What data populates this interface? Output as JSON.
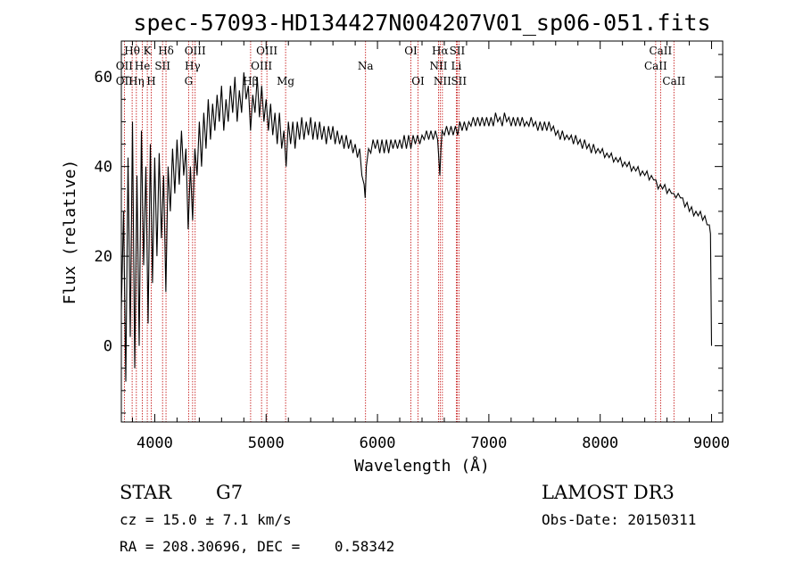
{
  "chart_data": {
    "type": "line",
    "title": "spec-57093-HD134427N004207V01_sp06-051.fits",
    "xlabel": "Wavelength (Å)",
    "ylabel": "Flux (relative)",
    "xlim": [
      3700,
      9100
    ],
    "ylim": [
      -17,
      68
    ],
    "xticks": [
      4000,
      5000,
      6000,
      7000,
      8000,
      9000
    ],
    "yticks": [
      0,
      20,
      40,
      60
    ],
    "series": [
      {
        "name": "spectrum",
        "color": "#000000",
        "points": [
          [
            3700,
            8
          ],
          [
            3720,
            30
          ],
          [
            3740,
            -8
          ],
          [
            3760,
            42
          ],
          [
            3780,
            2
          ],
          [
            3800,
            50
          ],
          [
            3820,
            -5
          ],
          [
            3840,
            38
          ],
          [
            3860,
            0
          ],
          [
            3880,
            48
          ],
          [
            3900,
            18
          ],
          [
            3920,
            40
          ],
          [
            3940,
            5
          ],
          [
            3960,
            45
          ],
          [
            3980,
            14
          ],
          [
            4000,
            42
          ],
          [
            4020,
            20
          ],
          [
            4040,
            43
          ],
          [
            4060,
            24
          ],
          [
            4080,
            38
          ],
          [
            4100,
            12
          ],
          [
            4120,
            40
          ],
          [
            4140,
            30
          ],
          [
            4160,
            44
          ],
          [
            4180,
            34
          ],
          [
            4200,
            46
          ],
          [
            4220,
            36
          ],
          [
            4240,
            48
          ],
          [
            4260,
            38
          ],
          [
            4280,
            44
          ],
          [
            4300,
            26
          ],
          [
            4320,
            40
          ],
          [
            4340,
            28
          ],
          [
            4360,
            44
          ],
          [
            4380,
            38
          ],
          [
            4400,
            50
          ],
          [
            4420,
            40
          ],
          [
            4440,
            52
          ],
          [
            4460,
            44
          ],
          [
            4480,
            55
          ],
          [
            4500,
            46
          ],
          [
            4520,
            54
          ],
          [
            4540,
            48
          ],
          [
            4560,
            56
          ],
          [
            4580,
            50
          ],
          [
            4600,
            58
          ],
          [
            4620,
            48
          ],
          [
            4640,
            55
          ],
          [
            4660,
            50
          ],
          [
            4680,
            58
          ],
          [
            4700,
            52
          ],
          [
            4720,
            60
          ],
          [
            4740,
            50
          ],
          [
            4760,
            57
          ],
          [
            4780,
            52
          ],
          [
            4800,
            61
          ],
          [
            4820,
            55
          ],
          [
            4840,
            58
          ],
          [
            4860,
            48
          ],
          [
            4880,
            56
          ],
          [
            4900,
            52
          ],
          [
            4920,
            60
          ],
          [
            4940,
            51
          ],
          [
            4960,
            58
          ],
          [
            4980,
            50
          ],
          [
            5000,
            55
          ],
          [
            5020,
            48
          ],
          [
            5040,
            54
          ],
          [
            5060,
            47
          ],
          [
            5080,
            52
          ],
          [
            5100,
            45
          ],
          [
            5120,
            52
          ],
          [
            5140,
            44
          ],
          [
            5160,
            48
          ],
          [
            5180,
            40
          ],
          [
            5200,
            50
          ],
          [
            5220,
            45
          ],
          [
            5240,
            50
          ],
          [
            5260,
            44
          ],
          [
            5280,
            50
          ],
          [
            5300,
            46
          ],
          [
            5320,
            51
          ],
          [
            5340,
            46
          ],
          [
            5360,
            50
          ],
          [
            5380,
            47
          ],
          [
            5400,
            51
          ],
          [
            5420,
            46
          ],
          [
            5440,
            50
          ],
          [
            5460,
            46
          ],
          [
            5480,
            50
          ],
          [
            5500,
            46
          ],
          [
            5520,
            49
          ],
          [
            5540,
            45
          ],
          [
            5560,
            49
          ],
          [
            5580,
            46
          ],
          [
            5600,
            49
          ],
          [
            5620,
            45
          ],
          [
            5640,
            48
          ],
          [
            5660,
            45
          ],
          [
            5680,
            47
          ],
          [
            5700,
            44
          ],
          [
            5720,
            47
          ],
          [
            5740,
            44
          ],
          [
            5760,
            46
          ],
          [
            5780,
            43
          ],
          [
            5800,
            45
          ],
          [
            5820,
            42
          ],
          [
            5840,
            44
          ],
          [
            5860,
            38
          ],
          [
            5880,
            36
          ],
          [
            5890,
            33
          ],
          [
            5900,
            40
          ],
          [
            5920,
            44
          ],
          [
            5940,
            43
          ],
          [
            5960,
            46
          ],
          [
            5980,
            44
          ],
          [
            6000,
            46
          ],
          [
            6020,
            43
          ],
          [
            6040,
            46
          ],
          [
            6060,
            43
          ],
          [
            6080,
            46
          ],
          [
            6100,
            43
          ],
          [
            6120,
            46
          ],
          [
            6140,
            44
          ],
          [
            6160,
            46
          ],
          [
            6180,
            44
          ],
          [
            6200,
            46
          ],
          [
            6220,
            44
          ],
          [
            6240,
            47
          ],
          [
            6260,
            44
          ],
          [
            6280,
            47
          ],
          [
            6300,
            44
          ],
          [
            6320,
            47
          ],
          [
            6340,
            45
          ],
          [
            6360,
            47
          ],
          [
            6380,
            45
          ],
          [
            6400,
            47
          ],
          [
            6420,
            46
          ],
          [
            6440,
            48
          ],
          [
            6460,
            46
          ],
          [
            6480,
            48
          ],
          [
            6500,
            46
          ],
          [
            6520,
            48
          ],
          [
            6540,
            46
          ],
          [
            6560,
            38
          ],
          [
            6570,
            44
          ],
          [
            6580,
            48
          ],
          [
            6600,
            47
          ],
          [
            6620,
            49
          ],
          [
            6640,
            47
          ],
          [
            6660,
            49
          ],
          [
            6680,
            47
          ],
          [
            6700,
            49
          ],
          [
            6720,
            47
          ],
          [
            6740,
            50
          ],
          [
            6760,
            48
          ],
          [
            6780,
            50
          ],
          [
            6800,
            48
          ],
          [
            6820,
            50
          ],
          [
            6840,
            49
          ],
          [
            6860,
            51
          ],
          [
            6880,
            49
          ],
          [
            6900,
            51
          ],
          [
            6920,
            49
          ],
          [
            6940,
            51
          ],
          [
            6960,
            49
          ],
          [
            6980,
            51
          ],
          [
            7000,
            49
          ],
          [
            7020,
            51
          ],
          [
            7040,
            49
          ],
          [
            7060,
            52
          ],
          [
            7080,
            50
          ],
          [
            7100,
            51
          ],
          [
            7120,
            49
          ],
          [
            7140,
            52
          ],
          [
            7160,
            50
          ],
          [
            7180,
            51
          ],
          [
            7200,
            49
          ],
          [
            7220,
            51
          ],
          [
            7240,
            49
          ],
          [
            7260,
            51
          ],
          [
            7280,
            49
          ],
          [
            7300,
            51
          ],
          [
            7320,
            49
          ],
          [
            7340,
            50
          ],
          [
            7360,
            49
          ],
          [
            7380,
            51
          ],
          [
            7400,
            49
          ],
          [
            7420,
            50
          ],
          [
            7440,
            48
          ],
          [
            7460,
            50
          ],
          [
            7480,
            48
          ],
          [
            7500,
            50
          ],
          [
            7520,
            48
          ],
          [
            7540,
            50
          ],
          [
            7560,
            48
          ],
          [
            7580,
            49
          ],
          [
            7600,
            47
          ],
          [
            7620,
            48
          ],
          [
            7640,
            46
          ],
          [
            7660,
            48
          ],
          [
            7680,
            46
          ],
          [
            7700,
            47
          ],
          [
            7720,
            46
          ],
          [
            7740,
            47
          ],
          [
            7760,
            45
          ],
          [
            7780,
            47
          ],
          [
            7800,
            45
          ],
          [
            7820,
            46
          ],
          [
            7840,
            44
          ],
          [
            7860,
            46
          ],
          [
            7880,
            44
          ],
          [
            7900,
            45
          ],
          [
            7920,
            43
          ],
          [
            7940,
            45
          ],
          [
            7960,
            43
          ],
          [
            7980,
            44
          ],
          [
            8000,
            43
          ],
          [
            8020,
            44
          ],
          [
            8040,
            42
          ],
          [
            8060,
            43
          ],
          [
            8080,
            42
          ],
          [
            8100,
            43
          ],
          [
            8120,
            41
          ],
          [
            8140,
            42
          ],
          [
            8160,
            41
          ],
          [
            8180,
            42
          ],
          [
            8200,
            40
          ],
          [
            8220,
            41
          ],
          [
            8240,
            40
          ],
          [
            8260,
            41
          ],
          [
            8280,
            39
          ],
          [
            8300,
            40
          ],
          [
            8320,
            39
          ],
          [
            8340,
            40
          ],
          [
            8360,
            38
          ],
          [
            8380,
            39
          ],
          [
            8400,
            38
          ],
          [
            8420,
            39
          ],
          [
            8440,
            37
          ],
          [
            8460,
            38
          ],
          [
            8480,
            37
          ],
          [
            8500,
            37
          ],
          [
            8520,
            35
          ],
          [
            8540,
            36
          ],
          [
            8560,
            35
          ],
          [
            8580,
            36
          ],
          [
            8600,
            34
          ],
          [
            8620,
            35
          ],
          [
            8640,
            34
          ],
          [
            8660,
            34
          ],
          [
            8680,
            33
          ],
          [
            8700,
            34
          ],
          [
            8720,
            33
          ],
          [
            8740,
            33
          ],
          [
            8760,
            31
          ],
          [
            8780,
            32
          ],
          [
            8800,
            30
          ],
          [
            8820,
            31
          ],
          [
            8840,
            29
          ],
          [
            8860,
            30
          ],
          [
            8880,
            29
          ],
          [
            8900,
            30
          ],
          [
            8920,
            28
          ],
          [
            8940,
            29
          ],
          [
            8960,
            27
          ],
          [
            8980,
            27
          ],
          [
            8990,
            25
          ],
          [
            9000,
            0
          ]
        ]
      }
    ],
    "lines": [
      {
        "label": "Hθ",
        "wave": 3797,
        "row": 1
      },
      {
        "label": "OII",
        "wave": 3727,
        "row": 2
      },
      {
        "label": "OII",
        "wave": 3727,
        "row": 3
      },
      {
        "label": "Hη",
        "wave": 3835,
        "row": 3
      },
      {
        "label": "He",
        "wave": 3889,
        "row": 2
      },
      {
        "label": "K",
        "wave": 3933,
        "row": 1
      },
      {
        "label": "H",
        "wave": 3968,
        "row": 3
      },
      {
        "label": "SII",
        "wave": 4070,
        "row": 2
      },
      {
        "label": "Hδ",
        "wave": 4101,
        "row": 1
      },
      {
        "label": "OIII",
        "wave": 4363,
        "row": 1
      },
      {
        "label": "Hγ",
        "wave": 4340,
        "row": 2
      },
      {
        "label": "G",
        "wave": 4304,
        "row": 3
      },
      {
        "label": "Hβ",
        "wave": 4861,
        "row": 3
      },
      {
        "label": "OIII",
        "wave": 5007,
        "row": 1
      },
      {
        "label": "OIII",
        "wave": 4959,
        "row": 2
      },
      {
        "label": "Mg",
        "wave": 5175,
        "row": 3
      },
      {
        "label": "Na",
        "wave": 5893,
        "row": 2
      },
      {
        "label": "OI",
        "wave": 6300,
        "row": 1
      },
      {
        "label": "OI",
        "wave": 6364,
        "row": 3
      },
      {
        "label": "Hα",
        "wave": 6563,
        "row": 1
      },
      {
        "label": "SII",
        "wave": 6716,
        "row": 1
      },
      {
        "label": "NII",
        "wave": 6548,
        "row": 2
      },
      {
        "label": "Li",
        "wave": 6708,
        "row": 2
      },
      {
        "label": "NII",
        "wave": 6583,
        "row": 3
      },
      {
        "label": "SII",
        "wave": 6731,
        "row": 3
      },
      {
        "label": "CaII",
        "wave": 8542,
        "row": 1
      },
      {
        "label": "CaII",
        "wave": 8498,
        "row": 2
      },
      {
        "label": "CaII",
        "wave": 8662,
        "row": 3
      }
    ],
    "line_color": "#c00000"
  },
  "info": {
    "class": "STAR",
    "subclass": "G7",
    "survey": "LAMOST DR3",
    "cz": "cz = 15.0 ± 7.1 km/s",
    "obs_date": "Obs-Date: 20150311",
    "coords": "RA = 208.30696, DEC =    0.58342"
  }
}
